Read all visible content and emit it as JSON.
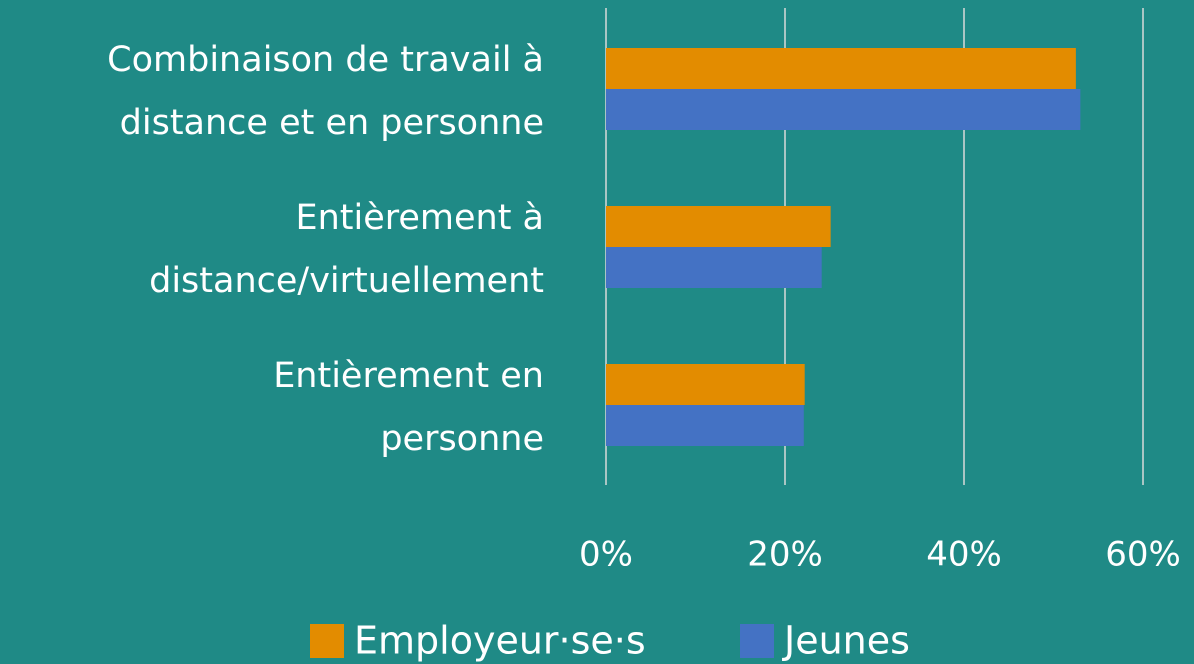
{
  "chart_data": {
    "type": "barh",
    "categories": [
      "Combinaison de travail à\ndistance et en personne",
      "Entièrement à\ndistance/virtuellement",
      "Entièrement en\npersonne"
    ],
    "series": [
      {
        "name": "Employeur·se·s",
        "color": "#e38c00",
        "values": [
          52.5,
          25.1,
          22.2
        ]
      },
      {
        "name": "Jeunes",
        "color": "#4472c4",
        "values": [
          53,
          24.1,
          22.1
        ]
      }
    ],
    "xlim": [
      0,
      60
    ],
    "xticks": [
      {
        "value": 0,
        "label": "0%"
      },
      {
        "value": 20,
        "label": "20%"
      },
      {
        "value": 40,
        "label": "40%"
      },
      {
        "value": 60,
        "label": "60%"
      }
    ],
    "grid": true,
    "legend": "bottom"
  }
}
